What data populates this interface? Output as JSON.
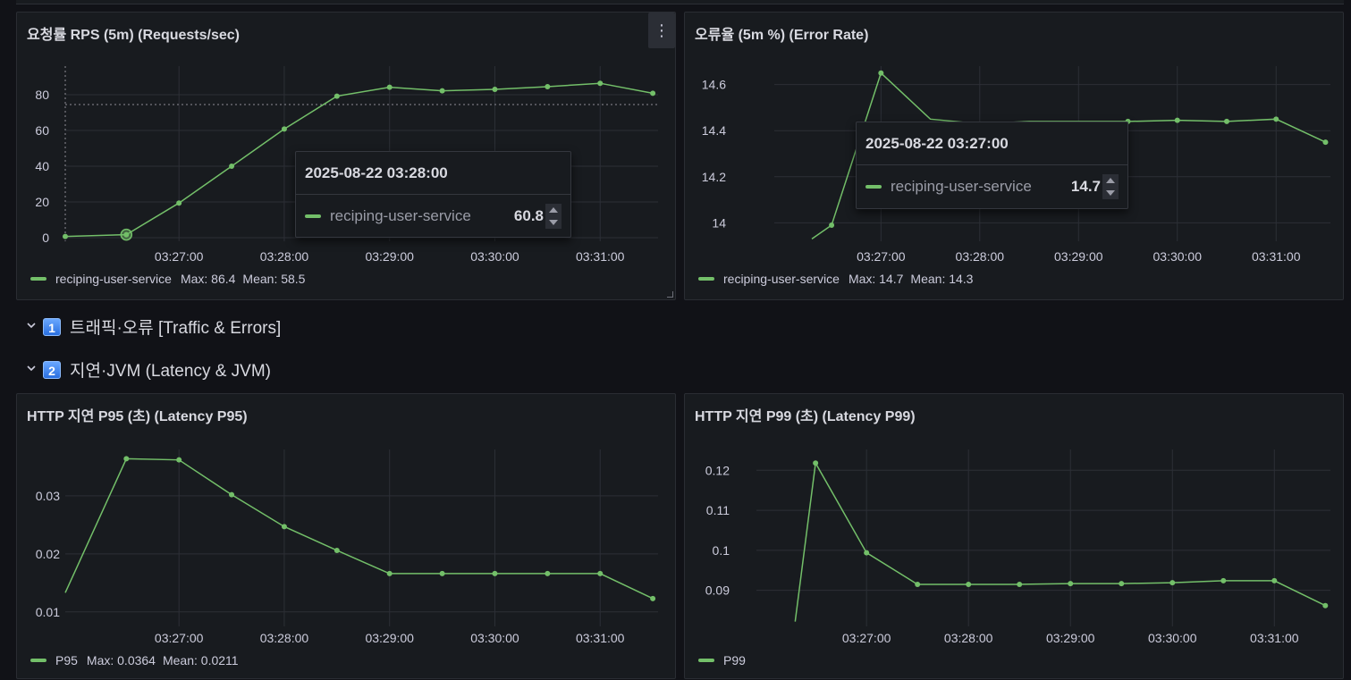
{
  "rows": {
    "traffic": {
      "index": "1",
      "title": "트래픽·오류 [Traffic & Errors]"
    },
    "latency": {
      "index": "2",
      "title": "지연·JVM (Latency & JVM)"
    }
  },
  "panels": {
    "rps": {
      "title": "요청률 RPS (5m) (Requests/sec)",
      "menu_icon": "⋮",
      "legend": {
        "name": "reciping-user-service",
        "max": "Max: 86.4",
        "mean": "Mean: 58.5"
      },
      "tooltip": {
        "time": "2025-08-22 03:28:00",
        "series": "reciping-user-service",
        "value": "60.8"
      }
    },
    "err": {
      "title": "오류율 (5m %) (Error Rate)",
      "legend": {
        "name": "reciping-user-service",
        "max": "Max: 14.7",
        "mean": "Mean: 14.3"
      },
      "tooltip": {
        "time": "2025-08-22 03:27:00",
        "series": "reciping-user-service",
        "value": "14.7"
      }
    },
    "p95": {
      "title": "HTTP 지연 P95 (초) (Latency P95)",
      "legend": {
        "name": "P95",
        "max": "Max: 0.0364",
        "mean": "Mean: 0.0211"
      }
    },
    "p99": {
      "title": "HTTP 지연 P99 (초) (Latency P99)",
      "legend": {
        "name": "P99"
      }
    }
  },
  "colors": {
    "series": "#73bf69",
    "grid": "#2c2f36",
    "background": "#181b1f"
  },
  "chart_data": [
    {
      "id": "rps",
      "type": "line",
      "title": "요청률 RPS (5m) (Requests/sec)",
      "x_ticks": [
        "03:27:00",
        "03:28:00",
        "03:29:00",
        "03:30:00",
        "03:31:00"
      ],
      "x_tick_minutes": [
        27,
        28,
        29,
        30,
        31
      ],
      "x_range_minutes": [
        25.92,
        31.55
      ],
      "y_ticks": [
        0,
        20,
        40,
        60,
        80
      ],
      "ylim": [
        -2,
        96
      ],
      "series": [
        {
          "name": "reciping-user-service",
          "x_minutes": [
            25.92,
            26.5,
            27.0,
            27.5,
            28.0,
            28.5,
            29.0,
            29.5,
            30.0,
            30.5,
            31.0,
            31.5
          ],
          "values": [
            0.7,
            1.7,
            19.4,
            40.0,
            60.8,
            79.2,
            84.2,
            82.2,
            83.0,
            84.5,
            86.4,
            80.8
          ]
        }
      ],
      "hover_minute": 26.5,
      "threshold_line": 74.5
    },
    {
      "id": "err",
      "type": "line",
      "title": "오류율 (5m %) (Error Rate)",
      "x_ticks": [
        "03:27:00",
        "03:28:00",
        "03:29:00",
        "03:30:00",
        "03:31:00"
      ],
      "x_tick_minutes": [
        27,
        28,
        29,
        30,
        31
      ],
      "x_range_minutes": [
        25.92,
        31.55
      ],
      "y_ticks": [
        14,
        14.2,
        14.4,
        14.6
      ],
      "y_tick_labels": [
        "14",
        "14.2",
        "14.4",
        "14.6"
      ],
      "ylim": [
        13.92,
        14.68
      ],
      "series": [
        {
          "name": "reciping-user-service",
          "x_minutes": [
            26.3,
            26.5,
            27.0,
            27.5,
            28.0,
            28.5,
            29.0,
            29.5,
            30.0,
            30.5,
            31.0,
            31.5
          ],
          "values": [
            13.93,
            13.99,
            14.65,
            14.45,
            14.43,
            14.44,
            14.44,
            14.44,
            14.445,
            14.44,
            14.45,
            14.35
          ]
        }
      ],
      "hidden_points": [
        0,
        3,
        4,
        5,
        6
      ]
    },
    {
      "id": "p95",
      "type": "line",
      "title": "HTTP 지연 P95 (초) (Latency P95)",
      "x_ticks": [
        "03:27:00",
        "03:28:00",
        "03:29:00",
        "03:30:00",
        "03:31:00"
      ],
      "x_tick_minutes": [
        27,
        28,
        29,
        30,
        31
      ],
      "x_range_minutes": [
        25.92,
        31.55
      ],
      "y_ticks": [
        0.01,
        0.02,
        0.03
      ],
      "y_tick_labels": [
        "0.01",
        "0.02",
        "0.03"
      ],
      "ylim": [
        0.0075,
        0.038
      ],
      "series": [
        {
          "name": "P95",
          "x_minutes": [
            25.92,
            26.5,
            27.0,
            27.5,
            28.0,
            28.5,
            29.0,
            29.5,
            30.0,
            30.5,
            31.0,
            31.5
          ],
          "values": [
            0.0133,
            0.0364,
            0.0362,
            0.0302,
            0.0247,
            0.0206,
            0.0166,
            0.0166,
            0.0166,
            0.0166,
            0.0166,
            0.0123
          ]
        }
      ],
      "hidden_points": [
        0
      ]
    },
    {
      "id": "p99",
      "type": "line",
      "title": "HTTP 지연 P99 (초) (Latency P99)",
      "x_ticks": [
        "03:27:00",
        "03:28:00",
        "03:29:00",
        "03:30:00",
        "03:31:00"
      ],
      "x_tick_minutes": [
        27,
        28,
        29,
        30,
        31
      ],
      "x_range_minutes": [
        25.92,
        31.55
      ],
      "y_ticks": [
        0.09,
        0.1,
        0.11,
        0.12
      ],
      "y_tick_labels": [
        "0.09",
        "0.1",
        "0.11",
        "0.12"
      ],
      "ylim": [
        0.081,
        0.1252
      ],
      "series": [
        {
          "name": "P99",
          "x_minutes": [
            26.3,
            26.5,
            27.0,
            27.5,
            28.0,
            28.5,
            29.0,
            29.5,
            30.0,
            30.5,
            31.0,
            31.5
          ],
          "values": [
            0.0822,
            0.1218,
            0.0994,
            0.0915,
            0.0915,
            0.0915,
            0.0917,
            0.0917,
            0.0919,
            0.0924,
            0.0924,
            0.0862
          ]
        }
      ],
      "hidden_points": [
        0
      ]
    }
  ]
}
